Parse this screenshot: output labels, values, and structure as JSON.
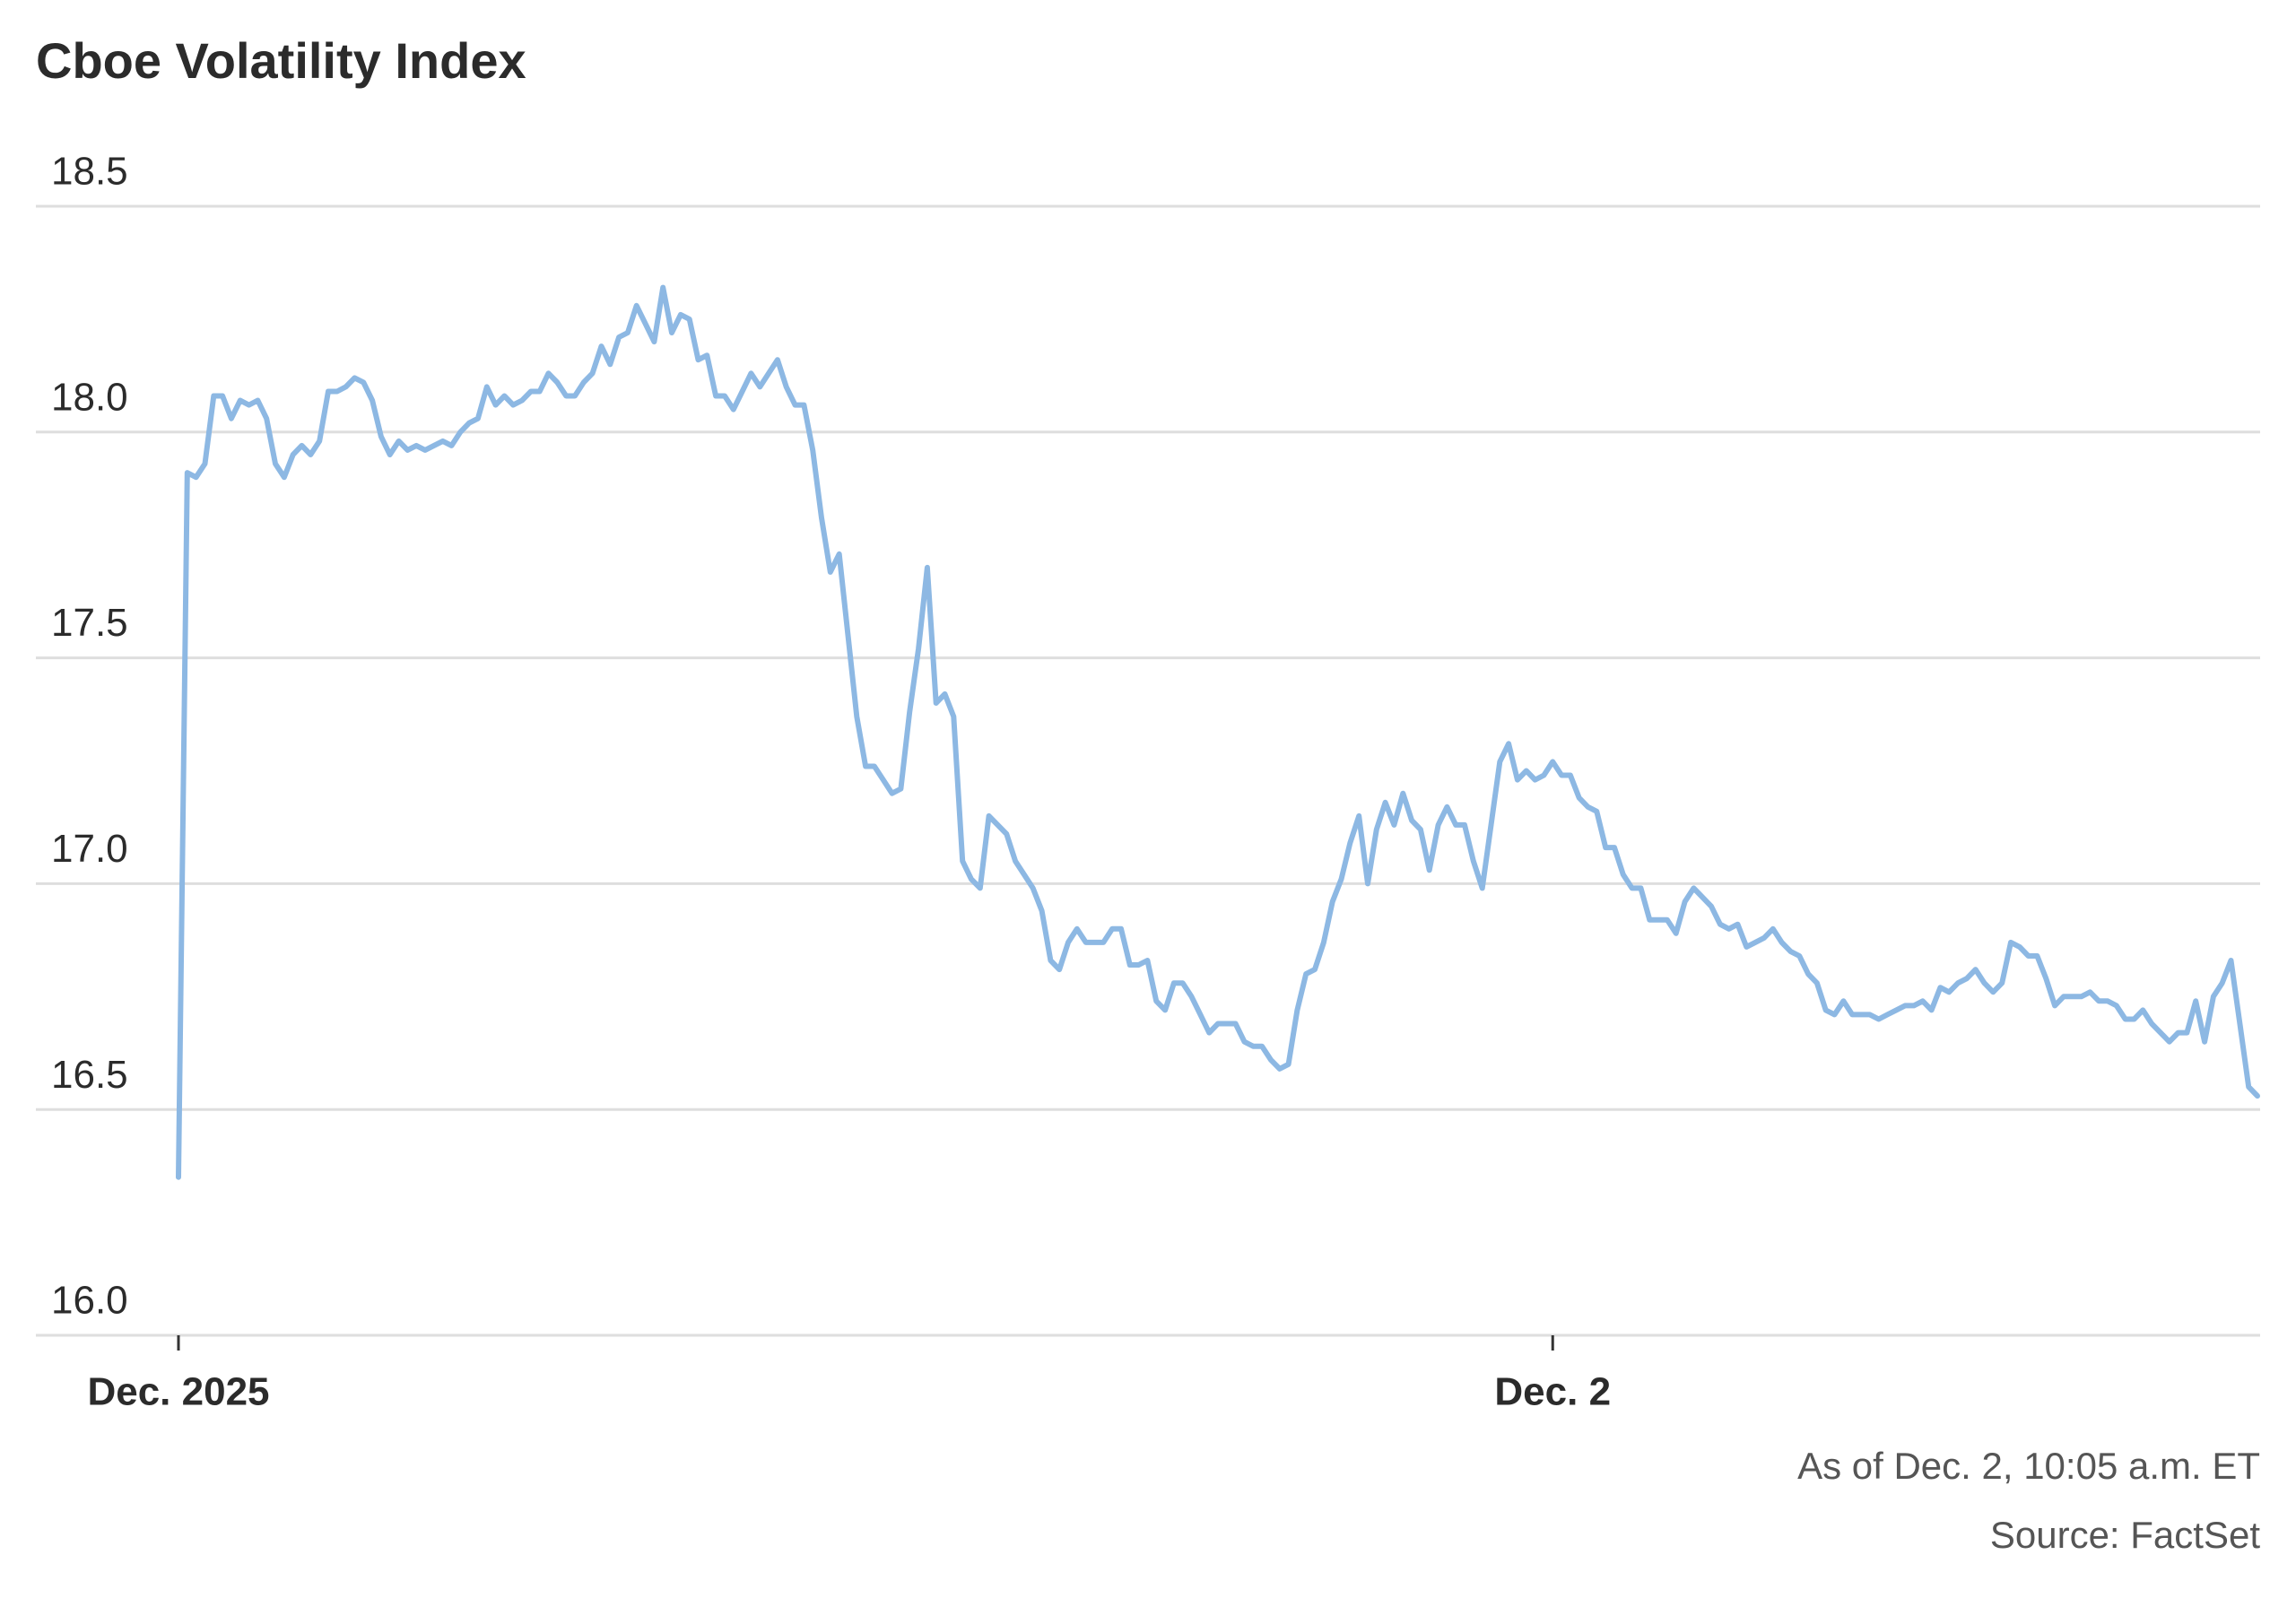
{
  "chart_data": {
    "type": "line",
    "title": "Cboe Volatility Index",
    "note": "As of Dec. 2, 10:05 a.m. ET",
    "source": "Source: FactSet",
    "categories": [
      "Dec. 2025",
      null,
      null,
      null,
      null,
      null,
      null,
      null,
      null,
      null,
      null,
      null,
      null,
      null,
      null,
      null,
      null,
      null,
      null,
      null,
      null,
      null,
      null,
      null,
      null,
      null,
      null,
      null,
      null,
      null,
      null,
      null,
      null,
      null,
      null,
      null,
      null,
      null,
      null,
      null,
      null,
      null,
      null,
      null,
      null,
      null,
      null,
      null,
      null,
      null,
      null,
      null,
      null,
      null,
      null,
      null,
      null,
      null,
      null,
      null,
      null,
      null,
      null,
      null,
      null,
      null,
      null,
      null,
      null,
      null,
      null,
      null,
      null,
      null,
      null,
      null,
      null,
      null,
      null,
      null,
      null,
      null,
      null,
      null,
      null,
      null,
      null,
      null,
      null,
      null,
      null,
      null,
      null,
      null,
      null,
      null,
      null,
      null,
      null,
      null,
      null,
      null,
      null,
      null,
      null,
      null,
      null,
      null,
      null,
      null,
      null,
      null,
      null,
      null,
      null,
      null,
      null,
      null,
      null,
      null,
      null,
      null,
      null,
      null,
      null,
      null,
      null,
      null,
      null,
      null,
      null,
      null,
      null,
      null,
      null,
      null,
      null,
      null,
      null,
      null,
      null,
      null,
      null,
      null,
      null,
      null,
      null,
      null,
      null,
      null,
      null,
      null,
      null,
      null,
      null,
      null,
      "Dec. 2",
      null,
      null,
      null,
      null,
      null,
      null,
      null,
      null,
      null,
      null,
      null,
      null,
      null,
      null,
      null,
      null,
      null,
      null,
      null,
      null,
      null,
      null,
      null,
      null,
      null,
      null,
      null,
      null,
      null,
      null,
      null,
      null,
      null,
      null,
      null,
      null,
      null,
      null,
      null,
      null,
      null,
      null,
      null,
      null,
      null,
      null,
      null,
      null,
      null,
      null,
      null,
      null,
      null,
      null,
      null,
      null,
      null,
      null,
      null,
      null,
      null,
      null,
      null,
      null,
      null,
      null,
      null,
      null,
      null,
      null,
      null,
      null,
      null,
      null,
      null,
      null,
      null,
      null,
      null,
      null
    ],
    "series": [
      {
        "name": "Cboe Volatility Index",
        "color": "#8db8e3",
        "values": [
          16.35,
          17.91,
          17.9,
          17.93,
          18.08,
          18.08,
          18.03,
          18.07,
          18.06,
          18.07,
          18.03,
          17.93,
          17.9,
          17.95,
          17.97,
          17.95,
          17.98,
          18.09,
          18.09,
          18.1,
          18.12,
          18.11,
          18.07,
          17.99,
          17.95,
          17.98,
          17.96,
          17.97,
          17.96,
          17.97,
          17.98,
          17.97,
          18.0,
          18.02,
          18.03,
          18.1,
          18.06,
          18.08,
          18.06,
          18.07,
          18.09,
          18.09,
          18.13,
          18.11,
          18.08,
          18.08,
          18.11,
          18.13,
          18.19,
          18.15,
          18.21,
          18.22,
          18.28,
          18.24,
          18.2,
          18.32,
          18.22,
          18.26,
          18.25,
          18.16,
          18.17,
          18.08,
          18.08,
          18.05,
          18.09,
          18.13,
          18.1,
          18.13,
          18.16,
          18.1,
          18.06,
          18.06,
          17.96,
          17.81,
          17.69,
          17.73,
          17.55,
          17.37,
          17.26,
          17.26,
          17.23,
          17.2,
          17.21,
          17.38,
          17.52,
          17.7,
          17.4,
          17.42,
          17.37,
          17.05,
          17.01,
          16.99,
          17.15,
          17.13,
          17.11,
          17.05,
          17.02,
          16.99,
          16.94,
          16.83,
          16.81,
          16.87,
          16.9,
          16.87,
          16.87,
          16.87,
          16.9,
          16.9,
          16.82,
          16.82,
          16.83,
          16.74,
          16.72,
          16.78,
          16.78,
          16.75,
          16.71,
          16.67,
          16.69,
          16.69,
          16.69,
          16.65,
          16.64,
          16.64,
          16.61,
          16.59,
          16.6,
          16.72,
          16.8,
          16.81,
          16.87,
          16.96,
          17.01,
          17.09,
          17.15,
          17.0,
          17.12,
          17.18,
          17.13,
          17.2,
          17.14,
          17.12,
          17.03,
          17.13,
          17.17,
          17.13,
          17.13,
          17.05,
          16.99,
          17.13,
          17.27,
          17.31,
          17.23,
          17.25,
          17.23,
          17.24,
          17.27,
          17.24,
          17.24,
          17.19,
          17.17,
          17.16,
          17.08,
          17.08,
          17.02,
          16.99,
          16.99,
          16.92,
          16.92,
          16.92,
          16.89,
          16.96,
          16.99,
          16.97,
          16.95,
          16.91,
          16.9,
          16.91,
          16.86,
          16.87,
          16.88,
          16.9,
          16.87,
          16.85,
          16.84,
          16.8,
          16.78,
          16.72,
          16.71,
          16.74,
          16.71,
          16.71,
          16.71,
          16.7,
          16.71,
          16.72,
          16.73,
          16.73,
          16.74,
          16.72,
          16.77,
          16.76,
          16.78,
          16.79,
          16.81,
          16.78,
          16.76,
          16.78,
          16.87,
          16.86,
          16.84,
          16.84,
          16.79,
          16.73,
          16.75,
          16.75,
          16.75,
          16.76,
          16.74,
          16.74,
          16.73,
          16.7,
          16.7,
          16.72,
          16.69,
          16.67,
          16.65,
          16.67,
          16.67,
          16.74,
          16.65,
          16.75,
          16.78,
          16.83,
          16.69,
          16.55,
          16.53
        ]
      }
    ],
    "ylim": [
      16,
      18.5
    ],
    "yticks": [
      {
        "value": 16,
        "label": "16.0"
      },
      16.5,
      {
        "value": 17,
        "label": "17.0"
      },
      17.5,
      {
        "value": 18,
        "label": "18.0"
      },
      18.5
    ],
    "grid": true
  }
}
